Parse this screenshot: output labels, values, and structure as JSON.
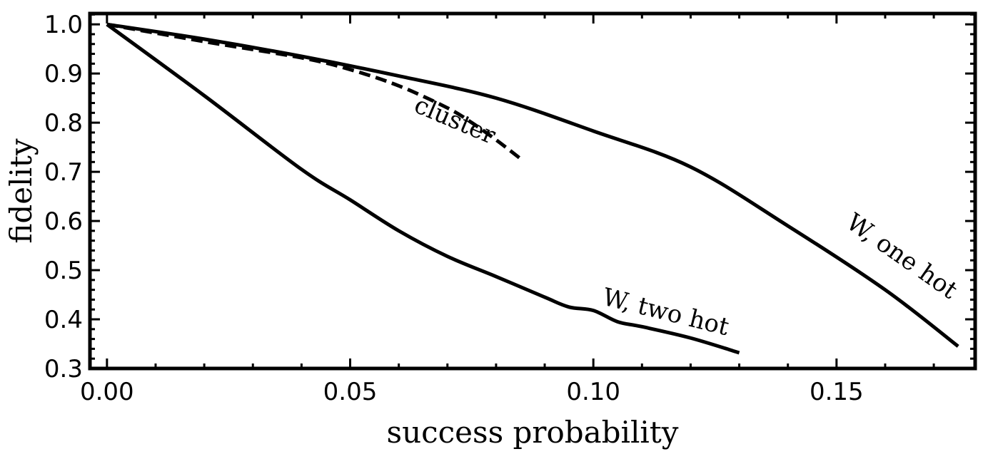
{
  "chart_data": {
    "type": "line",
    "title": "",
    "xlabel": "success probability",
    "ylabel": "fidelity",
    "xlim": [
      -0.0035,
      0.1785
    ],
    "ylim": [
      0.3,
      1.022
    ],
    "x_ticks": [
      0.0,
      0.05,
      0.1,
      0.15
    ],
    "x_tick_labels": [
      "0.00",
      "0.05",
      "0.10",
      "0.15"
    ],
    "y_ticks": [
      0.3,
      0.4,
      0.5,
      0.6,
      0.7,
      0.8,
      0.9,
      1.0
    ],
    "y_tick_labels": [
      "0.3",
      "0.4",
      "0.5",
      "0.6",
      "0.7",
      "0.8",
      "0.9",
      "1.0"
    ],
    "grid": false,
    "legend": "none",
    "series": [
      {
        "name": "W, one hot",
        "style": "solid",
        "color": "#000000",
        "points": [
          [
            0.0,
            1.0
          ],
          [
            0.02,
            0.97
          ],
          [
            0.04,
            0.935
          ],
          [
            0.06,
            0.895
          ],
          [
            0.08,
            0.85
          ],
          [
            0.1,
            0.783
          ],
          [
            0.12,
            0.71
          ],
          [
            0.14,
            0.59
          ],
          [
            0.16,
            0.46
          ],
          [
            0.175,
            0.345
          ]
        ]
      },
      {
        "name": "W, two hot",
        "style": "solid",
        "color": "#000000",
        "points": [
          [
            0.0,
            1.0
          ],
          [
            0.02,
            0.855
          ],
          [
            0.04,
            0.705
          ],
          [
            0.05,
            0.643
          ],
          [
            0.06,
            0.58
          ],
          [
            0.07,
            0.528
          ],
          [
            0.08,
            0.487
          ],
          [
            0.09,
            0.445
          ],
          [
            0.095,
            0.425
          ],
          [
            0.1,
            0.418
          ],
          [
            0.105,
            0.395
          ],
          [
            0.11,
            0.385
          ],
          [
            0.12,
            0.362
          ],
          [
            0.13,
            0.332
          ]
        ]
      },
      {
        "name": "cluster",
        "style": "dashed",
        "color": "#000000",
        "points": [
          [
            0.0,
            1.0
          ],
          [
            0.02,
            0.965
          ],
          [
            0.04,
            0.932
          ],
          [
            0.05,
            0.908
          ],
          [
            0.06,
            0.875
          ],
          [
            0.07,
            0.83
          ],
          [
            0.075,
            0.8
          ],
          [
            0.08,
            0.765
          ],
          [
            0.085,
            0.727
          ]
        ]
      }
    ],
    "annotations": [
      {
        "text": "cluster",
        "x": 0.0709,
        "y": 0.79,
        "rotation": 23
      },
      {
        "text": "W, two hot",
        "x": 0.1145,
        "y": 0.399,
        "rotation": 14
      },
      {
        "text": "W, one hot",
        "x": 0.1625,
        "y": 0.515,
        "rotation": 35
      }
    ]
  }
}
